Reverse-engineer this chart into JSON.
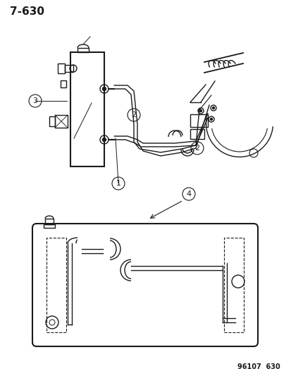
{
  "title": "7-630",
  "footer": "96107  630",
  "bg_color": "#ffffff",
  "line_color": "#1a1a1a",
  "title_fontsize": 11,
  "footer_fontsize": 7,
  "label_fontsize": 8
}
